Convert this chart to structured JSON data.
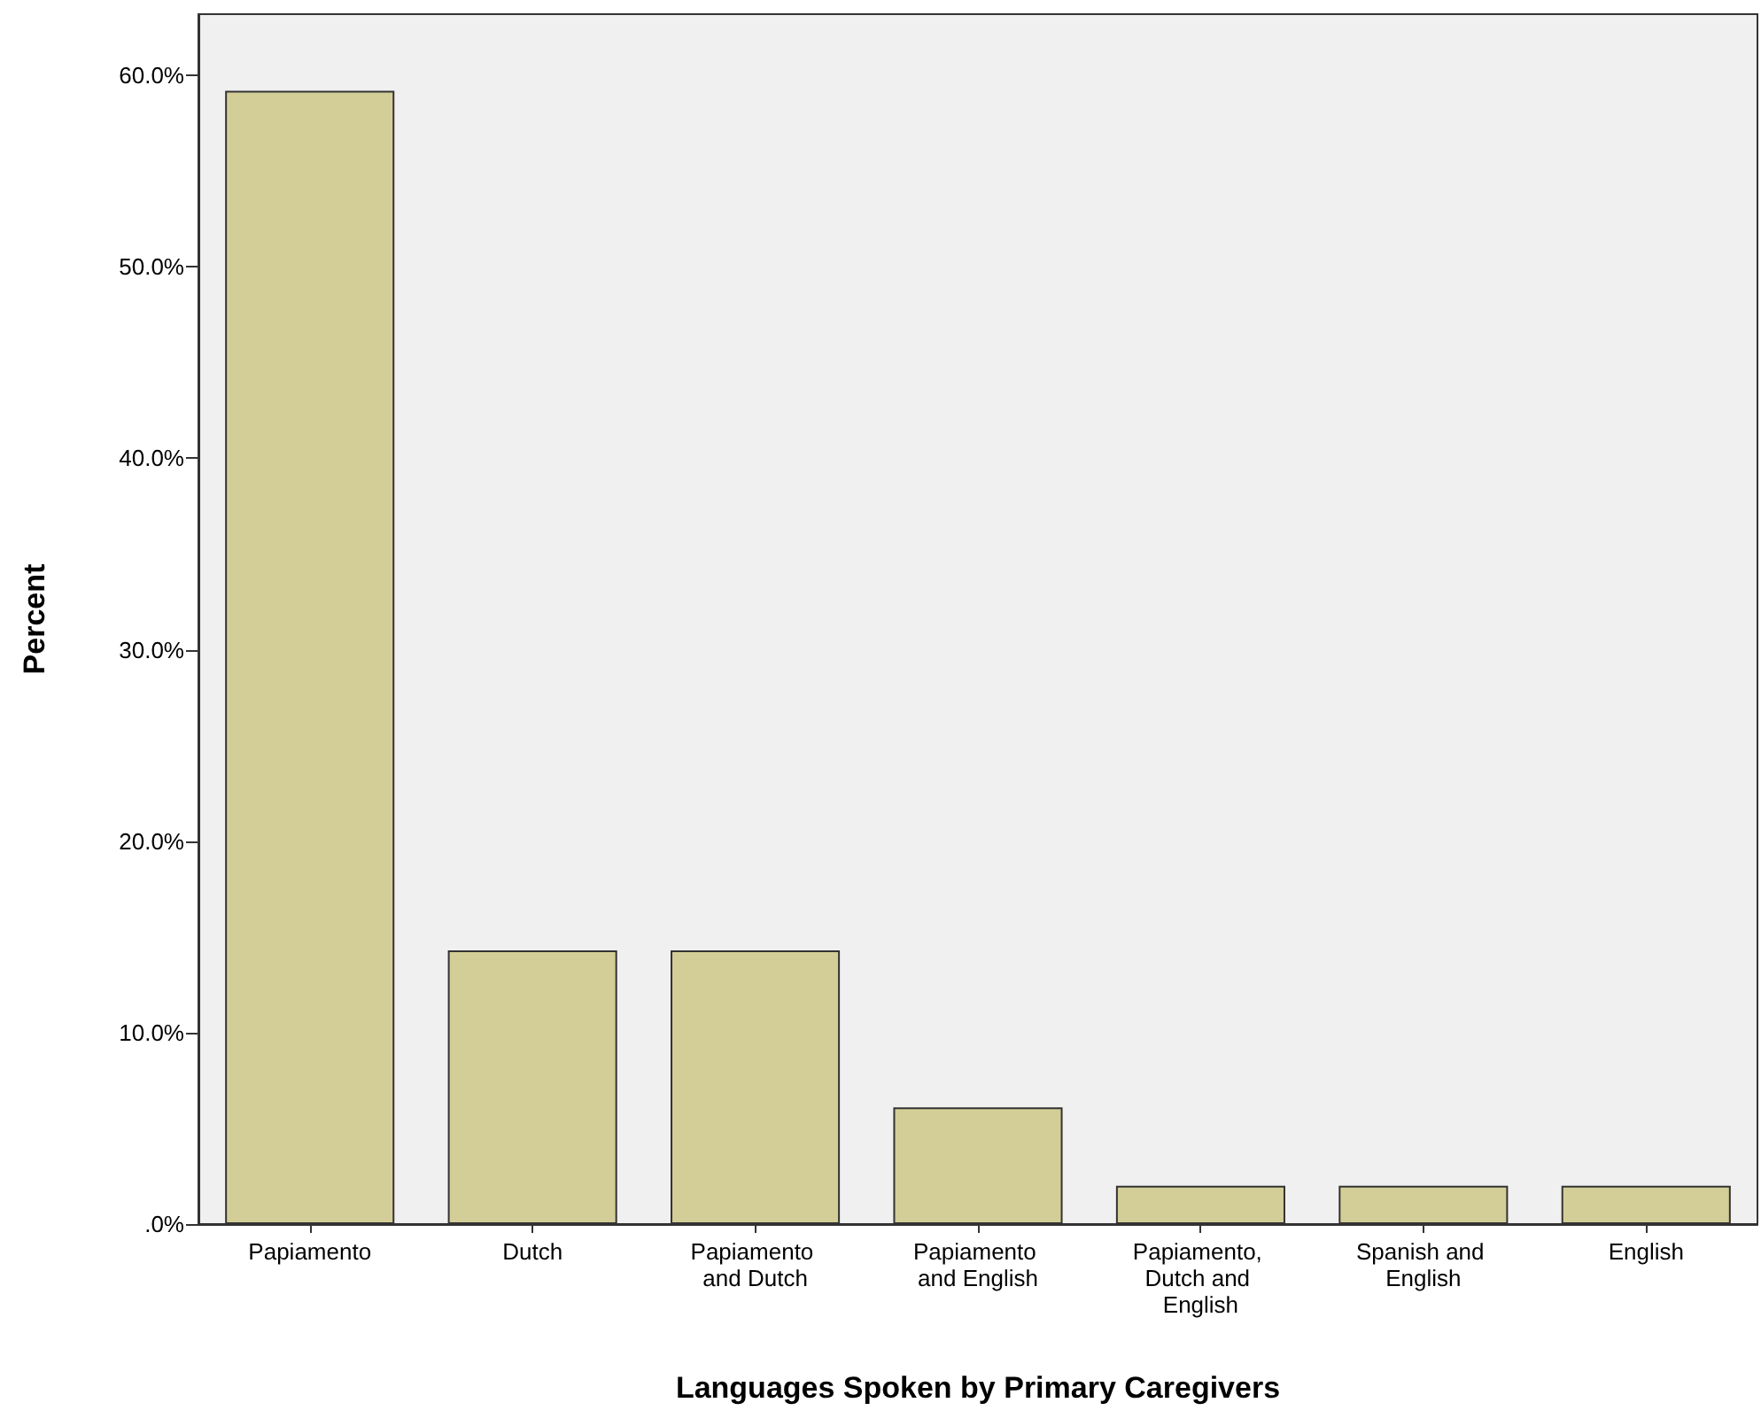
{
  "chart_data": {
    "type": "bar",
    "xlabel": "Languages Spoken by Primary Caregivers",
    "ylabel": "Percent",
    "categories": [
      "Papiamento",
      "Dutch",
      "Papiamento and Dutch",
      "Papiamento and English",
      "Papiamento, Dutch and English",
      "Spanish and English",
      "English"
    ],
    "values": [
      59.2,
      14.3,
      14.3,
      6.1,
      2.0,
      2.0,
      2.0
    ],
    "color": "#d3ce97",
    "ylim": [
      0,
      63.2
    ],
    "yticks": [
      {
        "value": 0,
        "label": ".0%"
      },
      {
        "value": 10,
        "label": "10.0%"
      },
      {
        "value": 20,
        "label": "20.0%"
      },
      {
        "value": 30,
        "label": "30.0%"
      },
      {
        "value": 40,
        "label": "40.0%"
      },
      {
        "value": 50,
        "label": "50.0%"
      },
      {
        "value": 60,
        "label": "60.0%"
      }
    ]
  }
}
